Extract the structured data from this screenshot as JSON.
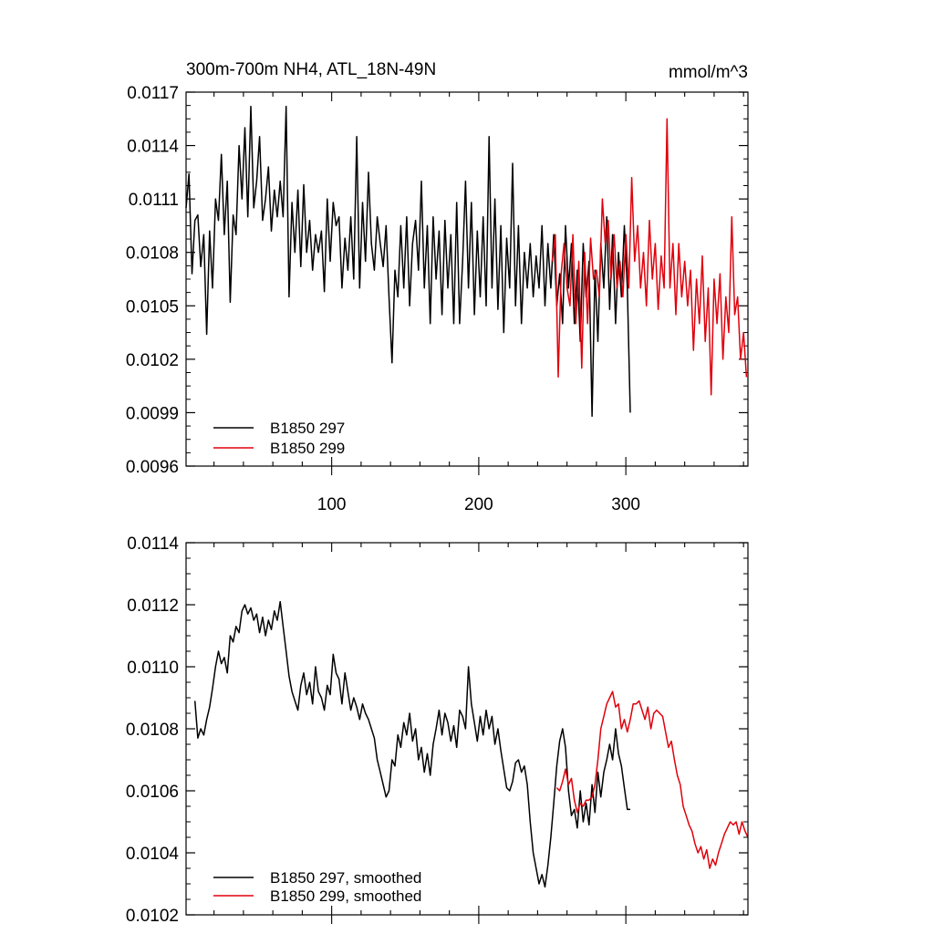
{
  "chart_data": [
    {
      "type": "line",
      "title": "300m-700m NH4, ATL_18N-49N",
      "units": "mmol/m^3",
      "xlim": [
        1,
        383
      ],
      "ylim": [
        0.0096,
        0.0117
      ],
      "x_tick_values": [
        100,
        200,
        300
      ],
      "x_tick_labels": [
        "100",
        "200",
        "300"
      ],
      "y_tick_values": [
        0.0096,
        0.0099,
        0.0102,
        0.0105,
        0.0108,
        0.0111,
        0.0114,
        0.0117
      ],
      "y_tick_labels": [
        "0.0096",
        "0.0099",
        "0.0102",
        "0.0105",
        "0.0108",
        "0.0111",
        "0.0114",
        "0.0117"
      ],
      "legend_position": "bottom-left",
      "series": [
        {
          "name": "B1850 297",
          "color": "#000000",
          "x": [
            1,
            3,
            5,
            7,
            9,
            11,
            13,
            15,
            17,
            19,
            21,
            23,
            25,
            27,
            29,
            31,
            33,
            35,
            37,
            39,
            41,
            43,
            45,
            47,
            49,
            51,
            53,
            55,
            57,
            59,
            61,
            63,
            65,
            67,
            69,
            71,
            73,
            75,
            77,
            79,
            81,
            83,
            85,
            87,
            89,
            91,
            93,
            95,
            97,
            99,
            101,
            103,
            105,
            107,
            109,
            111,
            113,
            115,
            117,
            119,
            121,
            123,
            125,
            127,
            129,
            131,
            133,
            135,
            137,
            139,
            141,
            143,
            145,
            147,
            149,
            151,
            153,
            155,
            157,
            159,
            161,
            163,
            165,
            167,
            169,
            171,
            173,
            175,
            177,
            179,
            181,
            183,
            185,
            187,
            189,
            191,
            193,
            195,
            197,
            199,
            201,
            203,
            205,
            207,
            209,
            211,
            213,
            215,
            217,
            219,
            221,
            223,
            225,
            227,
            229,
            231,
            233,
            235,
            237,
            239,
            241,
            243,
            245,
            247,
            249,
            251,
            253,
            255,
            257,
            259,
            261,
            263,
            265,
            267,
            269,
            271,
            273,
            275,
            277,
            279,
            281,
            283,
            285,
            287,
            289,
            291,
            293,
            295,
            297,
            299,
            301,
            303
          ],
          "values": [
            0.01105,
            0.01124,
            0.01068,
            0.01098,
            0.01101,
            0.01072,
            0.0109,
            0.01034,
            0.01092,
            0.0106,
            0.0111,
            0.01098,
            0.01135,
            0.0109,
            0.0112,
            0.01052,
            0.01101,
            0.0109,
            0.0114,
            0.0111,
            0.0115,
            0.011,
            0.01162,
            0.01105,
            0.0112,
            0.01145,
            0.01098,
            0.0111,
            0.01128,
            0.01092,
            0.01115,
            0.011,
            0.0112,
            0.011,
            0.01162,
            0.01055,
            0.01108,
            0.0108,
            0.01115,
            0.01072,
            0.01118,
            0.0108,
            0.01098,
            0.0107,
            0.0109,
            0.0108,
            0.01092,
            0.01058,
            0.0111,
            0.01075,
            0.01108,
            0.01095,
            0.011,
            0.0106,
            0.01088,
            0.0107,
            0.011,
            0.01065,
            0.01145,
            0.0106,
            0.01108,
            0.01075,
            0.01125,
            0.01085,
            0.0107,
            0.011,
            0.01085,
            0.01072,
            0.01095,
            0.01055,
            0.01018,
            0.0107,
            0.01055,
            0.01095,
            0.0106,
            0.011,
            0.0105,
            0.01085,
            0.01098,
            0.0107,
            0.0112,
            0.0106,
            0.01095,
            0.0104,
            0.011,
            0.01065,
            0.01092,
            0.01045,
            0.01098,
            0.0106,
            0.0109,
            0.0104,
            0.01108,
            0.0104,
            0.01075,
            0.0112,
            0.0106,
            0.01108,
            0.01045,
            0.01092,
            0.01055,
            0.011,
            0.0105,
            0.01145,
            0.0106,
            0.0111,
            0.01048,
            0.01095,
            0.01035,
            0.01088,
            0.0106,
            0.0113,
            0.0105,
            0.01095,
            0.0104,
            0.0108,
            0.0106,
            0.01085,
            0.01055,
            0.01078,
            0.0106,
            0.01095,
            0.0105,
            0.01085,
            0.0106,
            0.0109,
            0.0105,
            0.01068,
            0.0104,
            0.01095,
            0.0106,
            0.01085,
            0.0104,
            0.0107,
            0.0103,
            0.01085,
            0.01055,
            0.01075,
            0.00988,
            0.0107,
            0.0103,
            0.01085,
            0.0106,
            0.011,
            0.01048,
            0.0109,
            0.0104,
            0.0108,
            0.01055,
            0.01095,
            0.0106,
            0.0099
          ]
        },
        {
          "name": "B1850 299",
          "color": "#e0000b",
          "x": [
            250,
            252,
            254,
            256,
            258,
            260,
            262,
            264,
            266,
            268,
            270,
            272,
            274,
            276,
            278,
            280,
            282,
            284,
            286,
            288,
            290,
            292,
            294,
            296,
            298,
            300,
            302,
            304,
            306,
            308,
            310,
            312,
            314,
            316,
            318,
            320,
            322,
            324,
            326,
            328,
            330,
            332,
            334,
            336,
            338,
            340,
            342,
            344,
            346,
            348,
            350,
            352,
            354,
            356,
            358,
            360,
            362,
            364,
            366,
            368,
            370,
            372,
            374,
            376,
            378,
            380,
            382
          ],
          "values": [
            0.01075,
            0.0109,
            0.0101,
            0.01068,
            0.01085,
            0.0106,
            0.0105,
            0.0109,
            0.0104,
            0.01075,
            0.01015,
            0.0108,
            0.0104,
            0.01088,
            0.01065,
            0.0107,
            0.01055,
            0.0111,
            0.01085,
            0.01098,
            0.01065,
            0.0109,
            0.0106,
            0.01075,
            0.01055,
            0.0109,
            0.0106,
            0.01122,
            0.01075,
            0.01095,
            0.0106,
            0.0108,
            0.0105,
            0.01098,
            0.01065,
            0.01085,
            0.01048,
            0.01078,
            0.0106,
            0.01155,
            0.0106,
            0.01085,
            0.01045,
            0.01085,
            0.01055,
            0.01075,
            0.0105,
            0.0107,
            0.01025,
            0.01065,
            0.0104,
            0.01078,
            0.0103,
            0.0106,
            0.01,
            0.01065,
            0.0104,
            0.01068,
            0.0102,
            0.01055,
            0.01035,
            0.011,
            0.01045,
            0.01055,
            0.0102,
            0.01035,
            0.0101
          ]
        }
      ]
    },
    {
      "type": "line",
      "xlim": [
        1,
        383
      ],
      "ylim": [
        0.0102,
        0.0114
      ],
      "x_tick_values": [
        100,
        200,
        300
      ],
      "y_tick_values": [
        0.0102,
        0.0104,
        0.0106,
        0.0108,
        0.011,
        0.0112,
        0.0114
      ],
      "y_tick_labels": [
        "0.0102",
        "0.0104",
        "0.0106",
        "0.0108",
        "0.0110",
        "0.0112",
        "0.0114"
      ],
      "legend_position": "bottom-left",
      "series": [
        {
          "name": "B1850 297, smoothed",
          "color": "#000000",
          "x": [
            7,
            9,
            11,
            13,
            15,
            17,
            19,
            21,
            23,
            25,
            27,
            29,
            31,
            33,
            35,
            37,
            39,
            41,
            43,
            45,
            47,
            49,
            51,
            53,
            55,
            57,
            59,
            61,
            63,
            65,
            67,
            69,
            71,
            73,
            75,
            77,
            79,
            81,
            83,
            85,
            87,
            89,
            91,
            93,
            95,
            97,
            99,
            101,
            103,
            105,
            107,
            109,
            111,
            113,
            115,
            117,
            119,
            121,
            123,
            125,
            127,
            129,
            131,
            133,
            135,
            137,
            139,
            141,
            143,
            145,
            147,
            149,
            151,
            153,
            155,
            157,
            159,
            161,
            163,
            165,
            167,
            169,
            171,
            173,
            175,
            177,
            179,
            181,
            183,
            185,
            187,
            189,
            191,
            193,
            195,
            197,
            199,
            201,
            203,
            205,
            207,
            209,
            211,
            213,
            215,
            217,
            219,
            221,
            223,
            225,
            227,
            229,
            231,
            233,
            235,
            237,
            239,
            241,
            243,
            245,
            247,
            249,
            251,
            253,
            255,
            257,
            259,
            261,
            263,
            265,
            267,
            269,
            271,
            273,
            275,
            277,
            279,
            281,
            283,
            285,
            287,
            289,
            291,
            293,
            295,
            297,
            299,
            301,
            303
          ],
          "values": [
            0.01089,
            0.01077,
            0.0108,
            0.01078,
            0.01083,
            0.01087,
            0.01093,
            0.011,
            0.01105,
            0.01101,
            0.01103,
            0.01098,
            0.0111,
            0.01108,
            0.01113,
            0.01111,
            0.01118,
            0.0112,
            0.01117,
            0.01119,
            0.01115,
            0.01117,
            0.01111,
            0.01116,
            0.0111,
            0.01115,
            0.01112,
            0.01118,
            0.01115,
            0.01121,
            0.01113,
            0.01105,
            0.01097,
            0.01092,
            0.01089,
            0.01086,
            0.01094,
            0.01098,
            0.01091,
            0.01095,
            0.01088,
            0.011,
            0.01092,
            0.0109,
            0.01086,
            0.01094,
            0.01091,
            0.01104,
            0.01098,
            0.01096,
            0.01088,
            0.01098,
            0.01092,
            0.01086,
            0.0109,
            0.01087,
            0.01083,
            0.01088,
            0.01085,
            0.01083,
            0.0108,
            0.01077,
            0.0107,
            0.01066,
            0.01062,
            0.01058,
            0.0106,
            0.0107,
            0.01068,
            0.01078,
            0.01074,
            0.01082,
            0.01078,
            0.01085,
            0.01076,
            0.0108,
            0.0107,
            0.01074,
            0.01066,
            0.01072,
            0.01065,
            0.01075,
            0.0108,
            0.01086,
            0.01078,
            0.01085,
            0.01082,
            0.01076,
            0.01081,
            0.01074,
            0.01086,
            0.01084,
            0.0108,
            0.011,
            0.01088,
            0.01082,
            0.01076,
            0.01084,
            0.01078,
            0.01086,
            0.0108,
            0.01084,
            0.01075,
            0.0108,
            0.01073,
            0.01067,
            0.01061,
            0.0106,
            0.01063,
            0.01069,
            0.0107,
            0.01066,
            0.01068,
            0.01062,
            0.0105,
            0.0104,
            0.01035,
            0.0103,
            0.01033,
            0.01029,
            0.01036,
            0.01045,
            0.01056,
            0.01068,
            0.01076,
            0.0108,
            0.01074,
            0.0106,
            0.01052,
            0.01054,
            0.01048,
            0.0106,
            0.0105,
            0.01056,
            0.01049,
            0.01062,
            0.01053,
            0.01066,
            0.01058,
            0.01066,
            0.0107,
            0.01075,
            0.0107,
            0.0108,
            0.01072,
            0.01068,
            0.01061,
            0.01054,
            0.01054
          ]
        },
        {
          "name": "B1850 299, smoothed",
          "color": "#e0000b",
          "x": [
            253,
            255,
            257,
            259,
            261,
            263,
            265,
            267,
            269,
            271,
            273,
            275,
            277,
            279,
            281,
            283,
            285,
            287,
            289,
            291,
            293,
            295,
            297,
            299,
            301,
            303,
            305,
            307,
            309,
            311,
            313,
            315,
            317,
            319,
            321,
            323,
            325,
            327,
            329,
            331,
            333,
            335,
            337,
            339,
            341,
            343,
            345,
            347,
            349,
            351,
            353,
            355,
            357,
            359,
            361,
            363,
            365,
            367,
            369,
            371,
            373,
            375,
            377,
            379,
            381,
            383
          ],
          "values": [
            0.01061,
            0.0106,
            0.01063,
            0.01067,
            0.01062,
            0.01064,
            0.01057,
            0.01053,
            0.01056,
            0.01055,
            0.01057,
            0.01057,
            0.01058,
            0.01062,
            0.0107,
            0.0108,
            0.01084,
            0.01088,
            0.0109,
            0.01092,
            0.01087,
            0.01088,
            0.0108,
            0.01083,
            0.01079,
            0.01083,
            0.01088,
            0.01088,
            0.01089,
            0.01086,
            0.01083,
            0.01087,
            0.0108,
            0.01085,
            0.01086,
            0.01085,
            0.01084,
            0.01079,
            0.01074,
            0.01076,
            0.0107,
            0.01065,
            0.01062,
            0.01055,
            0.01052,
            0.01049,
            0.01047,
            0.01043,
            0.0104,
            0.01042,
            0.01038,
            0.01041,
            0.01035,
            0.01038,
            0.01036,
            0.0104,
            0.01043,
            0.01046,
            0.01048,
            0.0105,
            0.01049,
            0.0105,
            0.01046,
            0.0105,
            0.01047,
            0.01045
          ]
        }
      ]
    }
  ]
}
